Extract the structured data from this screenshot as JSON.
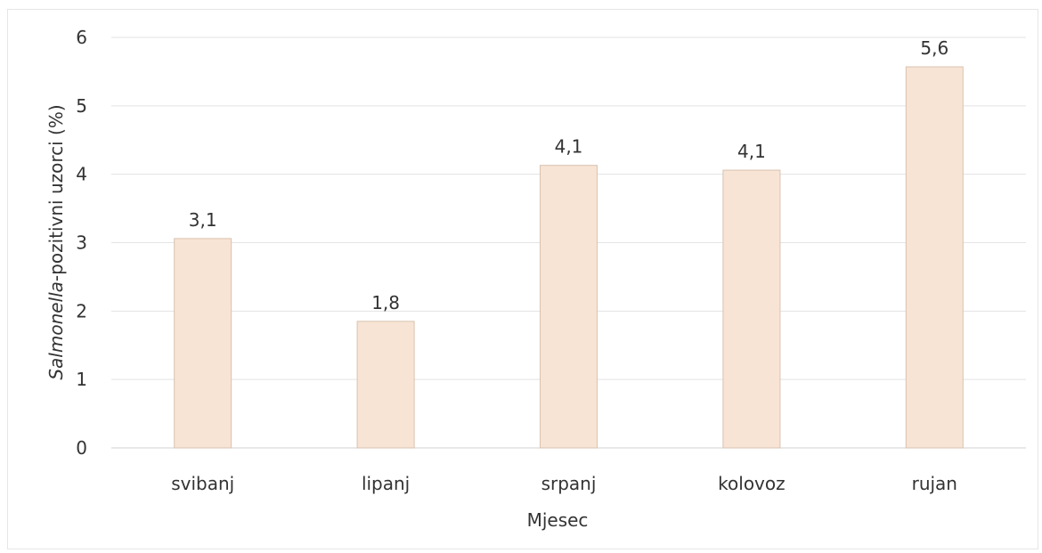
{
  "chart_data": {
    "type": "bar",
    "categories": [
      "svibanj",
      "lipanj",
      "srpanj",
      "kolovoz",
      "rujan"
    ],
    "values": [
      3.06,
      1.85,
      4.13,
      4.06,
      5.57
    ],
    "data_labels": [
      "3,1",
      "1,8",
      "4,1",
      "4,1",
      "5,6"
    ],
    "ylim": [
      0,
      6
    ],
    "y_ticks": [
      0,
      1,
      2,
      3,
      4,
      5,
      6
    ],
    "xlabel": "Mjesec",
    "ylabel": {
      "italic": "Salmonella",
      "rest": "-pozitivni uzorci (%)"
    },
    "grid": true,
    "legend": "none",
    "bar_color": "#f8e4d4",
    "bar_edge_color": "#d9c2b0"
  }
}
